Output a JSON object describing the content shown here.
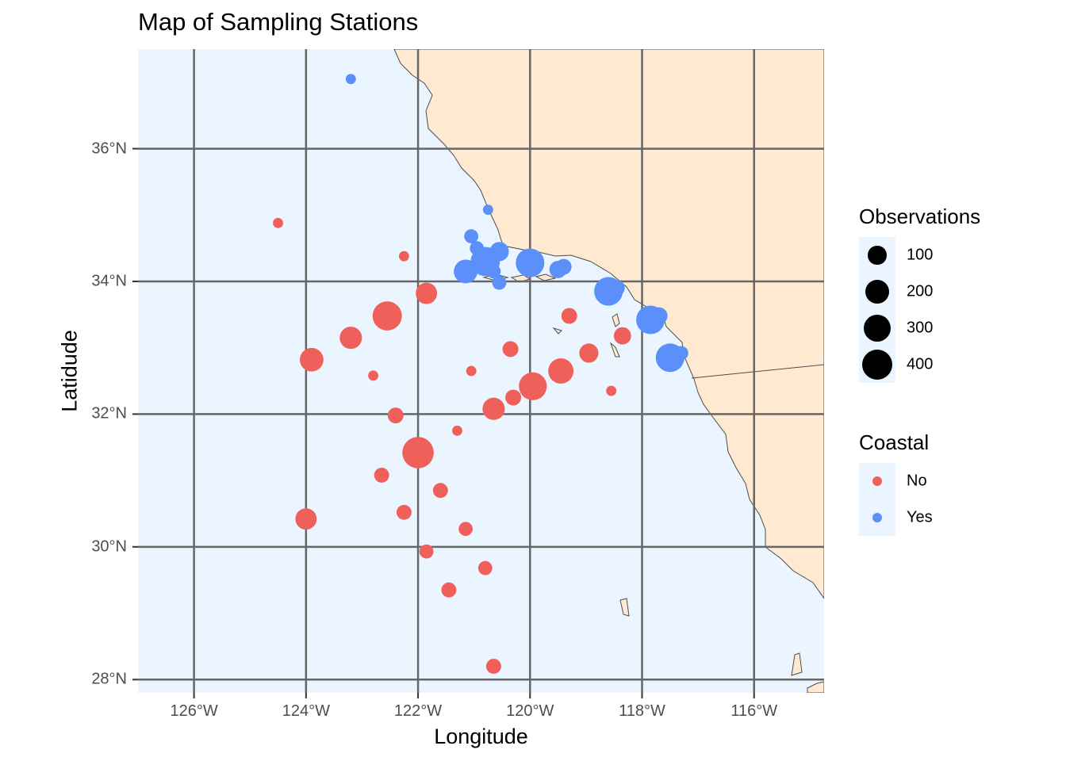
{
  "chart_data": {
    "type": "scatter",
    "title": "Map of Sampling Stations",
    "xlabel": "Longitude",
    "ylabel": "Latidude",
    "xlim": [
      -127.0,
      -114.75
    ],
    "ylim": [
      27.8,
      37.5
    ],
    "x_ticks": [
      {
        "value": -126,
        "label": "126°W"
      },
      {
        "value": -124,
        "label": "124°W"
      },
      {
        "value": -122,
        "label": "122°W"
      },
      {
        "value": -120,
        "label": "120°W"
      },
      {
        "value": -118,
        "label": "118°W"
      },
      {
        "value": -116,
        "label": "116°W"
      }
    ],
    "y_ticks": [
      {
        "value": 28,
        "label": "28°N"
      },
      {
        "value": 30,
        "label": "30°N"
      },
      {
        "value": 32,
        "label": "32°N"
      },
      {
        "value": 34,
        "label": "34°N"
      },
      {
        "value": 36,
        "label": "36°N"
      }
    ],
    "grid": true,
    "colors": {
      "ocean": "#ebf5ff",
      "land": "#ffe9d1",
      "coast": "#4d4d4d",
      "grid": "#666666",
      "No": "#f0605a",
      "Yes": "#5b8ff9"
    },
    "size_legend": {
      "title": "Observations",
      "values": [
        100,
        200,
        300,
        400
      ]
    },
    "color_legend": {
      "title": "Coastal",
      "entries": [
        "No",
        "Yes"
      ]
    },
    "series": [
      {
        "name": "No",
        "points": [
          {
            "lon": -124.5,
            "lat": 34.88,
            "obs": 10
          },
          {
            "lon": -122.25,
            "lat": 34.38,
            "obs": 10
          },
          {
            "lon": -121.85,
            "lat": 33.82,
            "obs": 150
          },
          {
            "lon": -122.55,
            "lat": 33.48,
            "obs": 350
          },
          {
            "lon": -123.2,
            "lat": 33.15,
            "obs": 170
          },
          {
            "lon": -123.9,
            "lat": 32.82,
            "obs": 200
          },
          {
            "lon": -122.8,
            "lat": 32.58,
            "obs": 10
          },
          {
            "lon": -121.05,
            "lat": 32.65,
            "obs": 10
          },
          {
            "lon": -120.35,
            "lat": 32.98,
            "obs": 60
          },
          {
            "lon": -119.3,
            "lat": 33.48,
            "obs": 60
          },
          {
            "lon": -118.35,
            "lat": 33.18,
            "obs": 80
          },
          {
            "lon": -118.95,
            "lat": 32.92,
            "obs": 110
          },
          {
            "lon": -119.45,
            "lat": 32.65,
            "obs": 240
          },
          {
            "lon": -119.95,
            "lat": 32.42,
            "obs": 310
          },
          {
            "lon": -120.3,
            "lat": 32.25,
            "obs": 60
          },
          {
            "lon": -120.65,
            "lat": 32.08,
            "obs": 170
          },
          {
            "lon": -118.55,
            "lat": 32.35,
            "obs": 10
          },
          {
            "lon": -122.4,
            "lat": 31.98,
            "obs": 60
          },
          {
            "lon": -121.3,
            "lat": 31.75,
            "obs": 10
          },
          {
            "lon": -122.0,
            "lat": 31.42,
            "obs": 420
          },
          {
            "lon": -122.65,
            "lat": 31.08,
            "obs": 50
          },
          {
            "lon": -121.6,
            "lat": 30.85,
            "obs": 50
          },
          {
            "lon": -122.25,
            "lat": 30.52,
            "obs": 50
          },
          {
            "lon": -124.0,
            "lat": 30.42,
            "obs": 150
          },
          {
            "lon": -121.15,
            "lat": 30.27,
            "obs": 40
          },
          {
            "lon": -121.85,
            "lat": 29.93,
            "obs": 40
          },
          {
            "lon": -120.8,
            "lat": 29.68,
            "obs": 40
          },
          {
            "lon": -121.45,
            "lat": 29.35,
            "obs": 50
          },
          {
            "lon": -120.65,
            "lat": 28.2,
            "obs": 50
          }
        ]
      },
      {
        "name": "Yes",
        "points": [
          {
            "lon": -123.2,
            "lat": 37.05,
            "obs": 10
          },
          {
            "lon": -120.75,
            "lat": 35.08,
            "obs": 10
          },
          {
            "lon": -121.05,
            "lat": 34.68,
            "obs": 40
          },
          {
            "lon": -120.95,
            "lat": 34.5,
            "obs": 40
          },
          {
            "lon": -120.55,
            "lat": 34.45,
            "obs": 110
          },
          {
            "lon": -120.8,
            "lat": 34.3,
            "obs": 350
          },
          {
            "lon": -120.65,
            "lat": 34.15,
            "obs": 40
          },
          {
            "lon": -121.15,
            "lat": 34.15,
            "obs": 200
          },
          {
            "lon": -120.55,
            "lat": 33.98,
            "obs": 40
          },
          {
            "lon": -120.0,
            "lat": 34.28,
            "obs": 330
          },
          {
            "lon": -119.5,
            "lat": 34.18,
            "obs": 80
          },
          {
            "lon": -119.4,
            "lat": 34.22,
            "obs": 60
          },
          {
            "lon": -118.6,
            "lat": 33.85,
            "obs": 330
          },
          {
            "lon": -118.45,
            "lat": 33.9,
            "obs": 60
          },
          {
            "lon": -117.85,
            "lat": 33.42,
            "obs": 330
          },
          {
            "lon": -117.7,
            "lat": 33.48,
            "obs": 80
          },
          {
            "lon": -117.5,
            "lat": 32.85,
            "obs": 330
          },
          {
            "lon": -117.3,
            "lat": 32.92,
            "obs": 40
          }
        ]
      }
    ]
  }
}
